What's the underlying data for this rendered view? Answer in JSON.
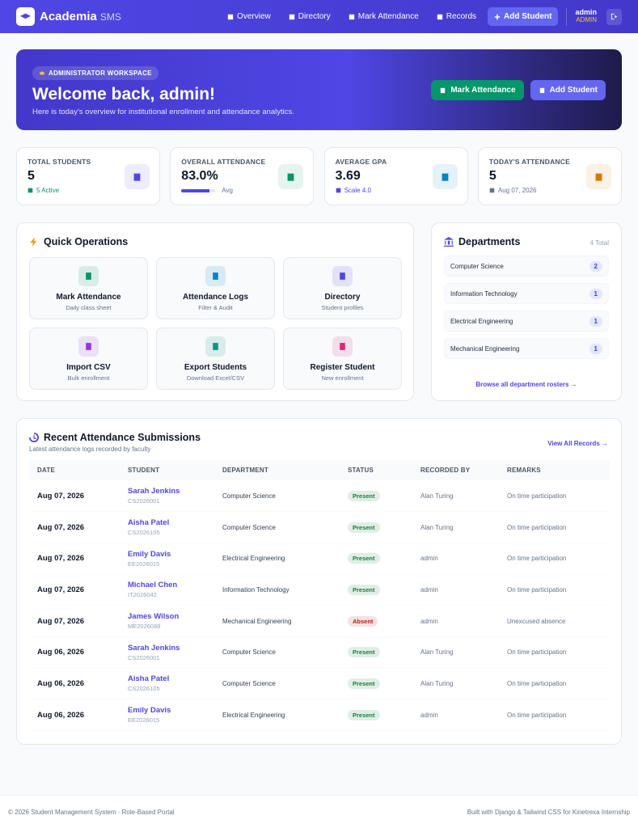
{
  "nav": {
    "brand": "Academia",
    "brand_sub": "SMS",
    "links": [
      "Overview",
      "Directory",
      "Mark Attendance",
      "Records"
    ],
    "cta": "Add Student",
    "user": "admin",
    "role": "ADMIN"
  },
  "hero": {
    "badge": "ADMINISTRATOR WORKSPACE",
    "title": "Welcome back, admin!",
    "subtitle": "Here is today's overview for institutional enrollment and attendance analytics.",
    "actions": [
      "Mark Attendance",
      "Add Student"
    ]
  },
  "stats": [
    {
      "label": "TOTAL STUDENTS",
      "value": "5",
      "note": "5 Active",
      "color": "#4f46e5"
    },
    {
      "label": "OVERALL ATTENDANCE",
      "value": "83.0%",
      "progress": 83,
      "note": "Avg",
      "color": "#059669"
    },
    {
      "label": "AVERAGE GPA",
      "value": "3.69",
      "note": "Scale 4.0",
      "color": "#0284c7"
    },
    {
      "label": "TODAY'S ATTENDANCE",
      "value": "5",
      "note": "Aug 07, 2026",
      "color": "#d97706"
    }
  ],
  "quick_ops": {
    "title": "Quick Operations",
    "items": [
      {
        "title": "Mark Attendance",
        "sub": "Daily class sheet",
        "color": "#059669"
      },
      {
        "title": "Attendance Logs",
        "sub": "Filter & Audit",
        "color": "#0284c7"
      },
      {
        "title": "Directory",
        "sub": "Student profiles",
        "color": "#4f46e5"
      },
      {
        "title": "Import CSV",
        "sub": "Bulk enrollment",
        "color": "#9333ea"
      },
      {
        "title": "Export Students",
        "sub": "Download Excel/CSV",
        "color": "#0d9488"
      },
      {
        "title": "Register Student",
        "sub": "New enrollment",
        "color": "#db2777"
      }
    ]
  },
  "departments": {
    "title": "Departments",
    "total": "4 Total",
    "items": [
      {
        "name": "Computer Science",
        "count": 2
      },
      {
        "name": "Information Technology",
        "count": 1
      },
      {
        "name": "Electrical Engineering",
        "count": 1
      },
      {
        "name": "Mechanical Engineering",
        "count": 1
      }
    ],
    "link": "Browse all department rosters →"
  },
  "recent": {
    "title": "Recent Attendance Submissions",
    "subtitle": "Latest attendance logs recorded by faculty",
    "link": "View All Records →",
    "columns": [
      "DATE",
      "STUDENT",
      "DEPARTMENT",
      "STATUS",
      "RECORDED BY",
      "REMARKS"
    ],
    "rows": [
      {
        "date": "Aug 07, 2026",
        "student": "Sarah Jenkins",
        "id": "CS2026001",
        "department": "Computer Science",
        "status": "Present",
        "status_color": "#15803d",
        "recorded_by": "Alan Turing",
        "remarks": "On time participation"
      },
      {
        "date": "Aug 07, 2026",
        "student": "Aisha Patel",
        "id": "CS2026105",
        "department": "Computer Science",
        "status": "Present",
        "status_color": "#15803d",
        "recorded_by": "Alan Turing",
        "remarks": "On time participation"
      },
      {
        "date": "Aug 07, 2026",
        "student": "Emily Davis",
        "id": "EE2026015",
        "department": "Electrical Engineering",
        "status": "Present",
        "status_color": "#15803d",
        "recorded_by": "admin",
        "remarks": "On time participation"
      },
      {
        "date": "Aug 07, 2026",
        "student": "Michael Chen",
        "id": "IT2026042",
        "department": "Information Technology",
        "status": "Present",
        "status_color": "#15803d",
        "recorded_by": "admin",
        "remarks": "On time participation"
      },
      {
        "date": "Aug 07, 2026",
        "student": "James Wilson",
        "id": "ME2026088",
        "department": "Mechanical Engineering",
        "status": "Absent",
        "status_color": "#b91c1c",
        "recorded_by": "admin",
        "remarks": "Unexcused absence"
      },
      {
        "date": "Aug 06, 2026",
        "student": "Sarah Jenkins",
        "id": "CS2026001",
        "department": "Computer Science",
        "status": "Present",
        "status_color": "#15803d",
        "recorded_by": "Alan Turing",
        "remarks": "On time participation"
      },
      {
        "date": "Aug 06, 2026",
        "student": "Aisha Patel",
        "id": "CS2026105",
        "department": "Computer Science",
        "status": "Present",
        "status_color": "#15803d",
        "recorded_by": "Alan Turing",
        "remarks": "On time participation"
      },
      {
        "date": "Aug 06, 2026",
        "student": "Emily Davis",
        "id": "EE2026015",
        "department": "Electrical Engineering",
        "status": "Present",
        "status_color": "#15803d",
        "recorded_by": "admin",
        "remarks": "On time participation"
      }
    ]
  },
  "footer": {
    "left": "© 2026 Student Management System · Role-Based Portal",
    "right": "Built with Django & Tailwind CSS for Kinetrexa Internship"
  }
}
